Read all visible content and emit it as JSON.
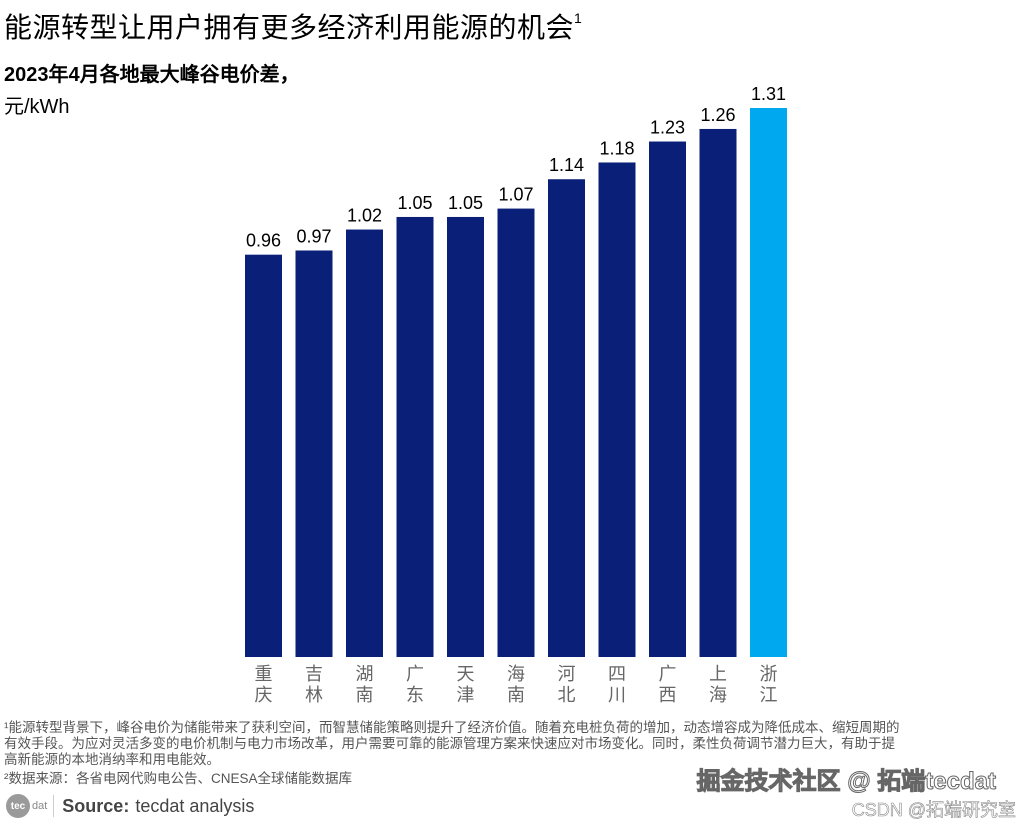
{
  "header": {
    "title": "能源转型让用户拥有更多经济利用能源的机会",
    "title_footnote": "1",
    "subtitle": "2023年4月各地最大峰谷电价差，",
    "unit": "元/kWh"
  },
  "chart_data": {
    "type": "bar",
    "title": "2023年4月各地最大峰谷电价差",
    "ylabel": "元/kWh",
    "xlabel": "",
    "ylim": [
      0,
      1.31
    ],
    "grid": false,
    "categories": [
      [
        "重",
        "庆"
      ],
      [
        "吉",
        "林"
      ],
      [
        "湖",
        "南"
      ],
      [
        "广",
        "东"
      ],
      [
        "天",
        "津"
      ],
      [
        "海",
        "南"
      ],
      [
        "河",
        "北"
      ],
      [
        "四",
        "川"
      ],
      [
        "广",
        "西"
      ],
      [
        "上",
        "海"
      ],
      [
        "浙",
        "江"
      ]
    ],
    "values": [
      0.96,
      0.97,
      1.02,
      1.05,
      1.05,
      1.07,
      1.14,
      1.18,
      1.23,
      1.26,
      1.31
    ],
    "value_labels": [
      "0.96",
      "0.97",
      "1.02",
      "1.05",
      "1.05",
      "1.07",
      "1.14",
      "1.18",
      "1.23",
      "1.26",
      "1.31"
    ],
    "highlight_index": 10,
    "colors": {
      "default": "#0a1f78",
      "highlight": "#00a9ef",
      "label": "#000000",
      "category": "#666666"
    }
  },
  "footnotes": {
    "note1_line1": "¹能源转型背景下，峰谷电价为储能带来了获利空间，而智慧储能策略则提升了经济价值。随着充电桩负荷的增加，动态增容成为降低成本、缩短周期的",
    "note1_line2": "有效手段。为应对灵活多变的电价机制与电力市场改革，用户需要可靠的能源管理方案来快速应对市场变化。同时，柔性负荷调节潜力巨大，有助于提",
    "note1_line3": "高新能源的本地消纳率和用电能效。",
    "note2": "²数据来源：各省电网代购电公告、CNESA全球储能数据库"
  },
  "source": {
    "logo_text_a": "tec",
    "logo_text_b": "dat",
    "label": "Source:",
    "value": "tecdat analysis"
  },
  "watermark": {
    "main": "掘金技术社区 @ 拓端tecdat",
    "secondary": "CSDN @拓端研究室"
  }
}
